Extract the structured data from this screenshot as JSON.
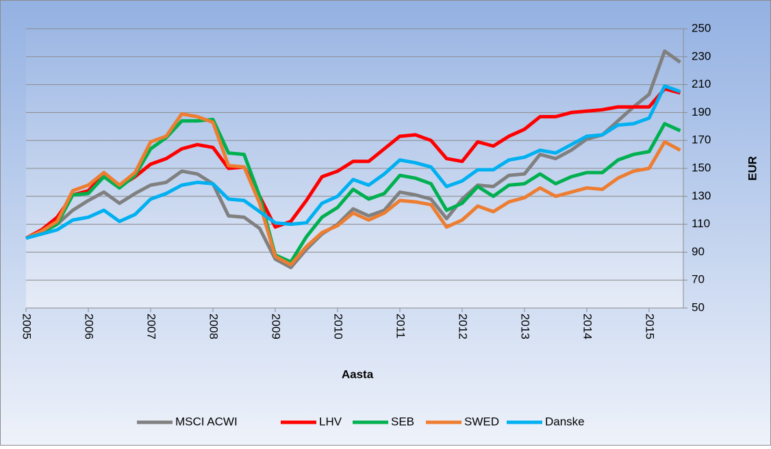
{
  "chart_data": {
    "type": "line",
    "x_label": "Aasta",
    "y_label": "EUR",
    "x": [
      2005,
      2005.25,
      2005.5,
      2005.75,
      2006,
      2006.25,
      2006.5,
      2006.75,
      2007,
      2007.25,
      2007.5,
      2007.75,
      2008,
      2008.25,
      2008.5,
      2008.75,
      2009,
      2009.25,
      2009.5,
      2009.75,
      2010,
      2010.25,
      2010.5,
      2010.75,
      2011,
      2011.25,
      2011.5,
      2011.75,
      2012,
      2012.25,
      2012.5,
      2012.75,
      2013,
      2013.25,
      2013.5,
      2013.75,
      2014,
      2014.25,
      2014.5,
      2014.75,
      2015,
      2015.25,
      2015.5
    ],
    "xlim": [
      2005,
      2015.55
    ],
    "xticks": [
      2005,
      2006,
      2007,
      2008,
      2009,
      2010,
      2011,
      2012,
      2013,
      2014,
      2015
    ],
    "ylim": [
      50,
      250
    ],
    "yticks": [
      50,
      70,
      90,
      110,
      130,
      150,
      170,
      190,
      210,
      230,
      250
    ],
    "grid": true,
    "legend": "bottom",
    "series": [
      {
        "name": "MSCI ACWI",
        "color": "#808080",
        "values": [
          100,
          104,
          110,
          120,
          127,
          133,
          125,
          132,
          138,
          140,
          148,
          146,
          139,
          116,
          115,
          107,
          85,
          79,
          92,
          103,
          110,
          121,
          116,
          120,
          133,
          131,
          128,
          114,
          128,
          138,
          137,
          145,
          146,
          160,
          157,
          163,
          171,
          174,
          184,
          194,
          203,
          234,
          226
        ]
      },
      {
        "name": "LHV",
        "color": "#ff0000",
        "values": [
          100,
          106,
          115,
          131,
          134,
          146,
          137,
          144,
          153,
          157,
          164,
          167,
          165,
          150,
          151,
          130,
          108,
          112,
          127,
          144,
          148,
          155,
          155,
          164,
          173,
          174,
          170,
          157,
          155,
          169,
          166,
          173,
          178,
          187,
          187,
          190,
          191,
          192,
          194,
          194,
          194,
          207,
          204
        ]
      },
      {
        "name": "SEB",
        "color": "#00b050",
        "values": [
          100,
          104,
          110,
          131,
          132,
          144,
          136,
          145,
          164,
          172,
          184,
          184,
          185,
          161,
          160,
          130,
          88,
          83,
          101,
          115,
          122,
          135,
          128,
          132,
          145,
          143,
          139,
          120,
          125,
          137,
          130,
          138,
          139,
          146,
          139,
          144,
          147,
          147,
          156,
          160,
          162,
          182,
          177
        ]
      },
      {
        "name": "SWED",
        "color": "#ed7d31",
        "values": [
          100,
          105,
          112,
          134,
          138,
          147,
          138,
          147,
          169,
          173,
          189,
          187,
          183,
          152,
          151,
          125,
          87,
          81,
          94,
          104,
          109,
          118,
          113,
          118,
          127,
          126,
          124,
          108,
          113,
          123,
          119,
          126,
          129,
          136,
          130,
          133,
          136,
          135,
          143,
          148,
          150,
          169,
          163
        ]
      },
      {
        "name": "Danske",
        "color": "#00b0f0",
        "values": [
          100,
          103,
          106,
          113,
          115,
          120,
          112,
          117,
          128,
          132,
          138,
          140,
          139,
          128,
          127,
          119,
          111,
          110,
          111,
          125,
          130,
          142,
          138,
          146,
          156,
          154,
          151,
          137,
          141,
          149,
          149,
          156,
          158,
          163,
          161,
          167,
          173,
          174,
          181,
          182,
          186,
          209,
          205
        ]
      }
    ]
  }
}
